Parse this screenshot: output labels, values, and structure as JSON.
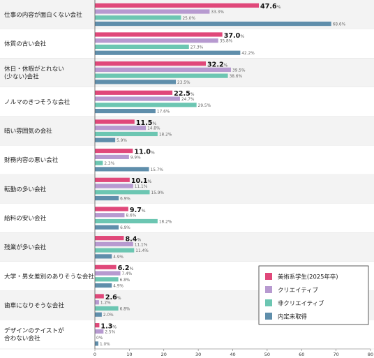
{
  "chart_data": {
    "type": "bar",
    "orientation": "horizontal",
    "categories": [
      "仕事の内容が面白くない会社",
      "体質の古い会社",
      "休日・休暇がとれない\n(少ない)会社",
      "ノルマのきつそうな会社",
      "暗い雰囲気の会社",
      "財務内容の悪い会社",
      "転勤の多い会社",
      "給料の安い会社",
      "残業が多い会社",
      "大学・男女差別のありそうな会社",
      "歯車になりそうな会社",
      "デザインのテイストが\n合わない会社"
    ],
    "series": [
      {
        "name": "美術系学生(2025年卒)",
        "color": "#e0487a",
        "bold": true,
        "values": [
          47.6,
          37.0,
          32.2,
          22.5,
          11.5,
          11.0,
          10.1,
          9.7,
          8.4,
          6.2,
          2.6,
          1.3
        ]
      },
      {
        "name": "クリエイティブ",
        "color": "#b79ad0",
        "bold": false,
        "values": [
          33.3,
          35.8,
          39.5,
          24.7,
          14.8,
          9.9,
          11.1,
          8.6,
          11.1,
          7.4,
          1.2,
          2.5
        ]
      },
      {
        "name": "非クリエイティブ",
        "color": "#6cc6b2",
        "bold": false,
        "values": [
          25.0,
          27.3,
          38.6,
          29.5,
          18.2,
          2.3,
          15.9,
          18.2,
          11.4,
          6.8,
          6.8,
          0
        ]
      },
      {
        "name": "内定未取得",
        "color": "#5f8eab",
        "bold": false,
        "values": [
          68.6,
          42.2,
          23.5,
          17.6,
          5.9,
          15.7,
          6.9,
          6.9,
          4.9,
          4.9,
          2.0,
          1.0
        ]
      }
    ],
    "value_labels": [
      [
        "47.6",
        "37.0",
        "32.2",
        "22.5",
        "11.5",
        "11.0",
        "10.1",
        "9.7",
        "8.4",
        "6.2",
        "2.6",
        "1.3"
      ],
      [
        "33.3",
        "35.8",
        "39.5",
        "24.7",
        "14.8",
        "9.9",
        "11.1",
        "8.6",
        "11.1",
        "7.4",
        "1.2",
        "2.5"
      ],
      [
        "25.0",
        "27.3",
        "38.6",
        "29.5",
        "18.2",
        "2.3",
        "15.9",
        "18.2",
        "11.4",
        "6.8",
        "6.8",
        "0"
      ],
      [
        "68.6",
        "42.2",
        "23.5",
        "17.6",
        "5.9",
        "15.7",
        "6.9",
        "6.9",
        "4.9",
        "4.9",
        "2.0",
        "1.0"
      ]
    ],
    "unit": "%",
    "xlim": [
      0,
      80
    ],
    "xticks": [
      0,
      10,
      20,
      30,
      40,
      50,
      60,
      70,
      80
    ],
    "category_band_colors": [
      "#f3f3f3",
      "#ffffff"
    ],
    "legend_position": "bottom-right",
    "grid": false
  }
}
